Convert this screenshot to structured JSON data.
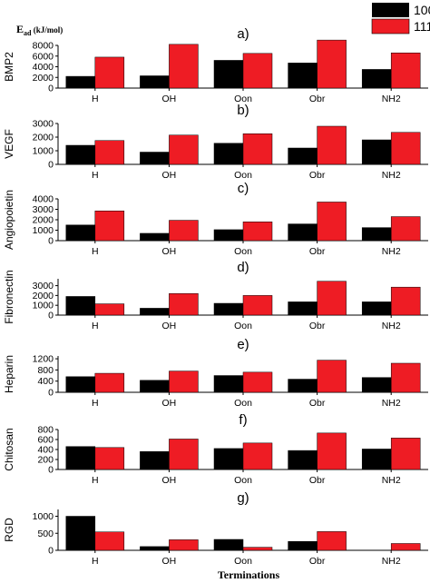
{
  "figure": {
    "y_unit_label": "E",
    "y_unit_sub": "ad",
    "y_unit_rest": " (kJ/mol)",
    "xlabel": "Terminations"
  },
  "legend": [
    {
      "name": "100",
      "color": "#000000"
    },
    {
      "name": "111",
      "color": "#ee1c24"
    }
  ],
  "chart_data": [
    {
      "type": "bar",
      "panel": "a)",
      "ylabel": "BMP2",
      "categories": [
        "H",
        "OH",
        "Oon",
        "Obr",
        "NH2"
      ],
      "ylim": [
        0,
        8000
      ],
      "yticks": [
        0,
        2000,
        4000,
        6000,
        8000
      ],
      "series": [
        {
          "name": "100",
          "color": "#000000",
          "values": [
            2200,
            2300,
            5200,
            4700,
            3500
          ]
        },
        {
          "name": "111",
          "color": "#ee1c24",
          "values": [
            5800,
            8200,
            6500,
            9000,
            6600
          ]
        }
      ]
    },
    {
      "type": "bar",
      "panel": "b)",
      "ylabel": "VEGF",
      "categories": [
        "H",
        "OH",
        "Oon",
        "Obr",
        "NH2"
      ],
      "ylim": [
        0,
        3000
      ],
      "yticks": [
        0,
        1000,
        2000,
        3000
      ],
      "series": [
        {
          "name": "100",
          "color": "#000000",
          "values": [
            1400,
            900,
            1550,
            1200,
            1800
          ]
        },
        {
          "name": "111",
          "color": "#ee1c24",
          "values": [
            1750,
            2150,
            2250,
            2800,
            2350
          ]
        }
      ]
    },
    {
      "type": "bar",
      "panel": "c)",
      "ylabel": "Angiopoietin",
      "categories": [
        "H",
        "OH",
        "Oon",
        "Obr",
        "NH2"
      ],
      "ylim": [
        0,
        4000
      ],
      "yticks": [
        0,
        1000,
        2000,
        3000,
        4000
      ],
      "series": [
        {
          "name": "100",
          "color": "#000000",
          "values": [
            1500,
            700,
            1050,
            1600,
            1250
          ]
        },
        {
          "name": "111",
          "color": "#ee1c24",
          "values": [
            2850,
            1950,
            1800,
            3700,
            2300
          ]
        }
      ]
    },
    {
      "type": "bar",
      "panel": "d)",
      "ylabel": "Fibronectin",
      "categories": [
        "H",
        "OH",
        "Oon",
        "Obr",
        "NH2"
      ],
      "ylim": [
        0,
        3700
      ],
      "yticks": [
        0,
        1000,
        2000,
        3000
      ],
      "series": [
        {
          "name": "100",
          "color": "#000000",
          "values": [
            1900,
            700,
            1200,
            1350,
            1350
          ]
        },
        {
          "name": "111",
          "color": "#ee1c24",
          "values": [
            1150,
            2200,
            2000,
            3450,
            2850
          ]
        }
      ]
    },
    {
      "type": "bar",
      "panel": "e)",
      "ylabel": "Heparin",
      "categories": [
        "H",
        "OH",
        "Oon",
        "Obr",
        "NH2"
      ],
      "ylim": [
        0,
        1300
      ],
      "yticks": [
        0,
        400,
        800,
        1200
      ],
      "series": [
        {
          "name": "100",
          "color": "#000000",
          "values": [
            560,
            430,
            600,
            470,
            530
          ]
        },
        {
          "name": "111",
          "color": "#ee1c24",
          "values": [
            680,
            760,
            720,
            1150,
            1040
          ]
        }
      ]
    },
    {
      "type": "bar",
      "panel": "f)",
      "ylabel": "Chitosan",
      "categories": [
        "H",
        "OH",
        "Oon",
        "Obr",
        "NH2"
      ],
      "ylim": [
        0,
        800
      ],
      "yticks": [
        0,
        200,
        400,
        600,
        800
      ],
      "series": [
        {
          "name": "100",
          "color": "#000000",
          "values": [
            460,
            360,
            420,
            380,
            410
          ]
        },
        {
          "name": "111",
          "color": "#ee1c24",
          "values": [
            440,
            610,
            530,
            730,
            630
          ]
        }
      ]
    },
    {
      "type": "bar",
      "panel": "g)",
      "ylabel": "RGD",
      "categories": [
        "H",
        "OH",
        "Oon",
        "Obr",
        "NH2"
      ],
      "ylim": [
        0,
        1200
      ],
      "yticks": [
        0,
        500,
        1000
      ],
      "series": [
        {
          "name": "100",
          "color": "#000000",
          "values": [
            1000,
            110,
            320,
            260,
            5
          ]
        },
        {
          "name": "111",
          "color": "#ee1c24",
          "values": [
            540,
            310,
            90,
            550,
            200
          ]
        }
      ]
    }
  ]
}
